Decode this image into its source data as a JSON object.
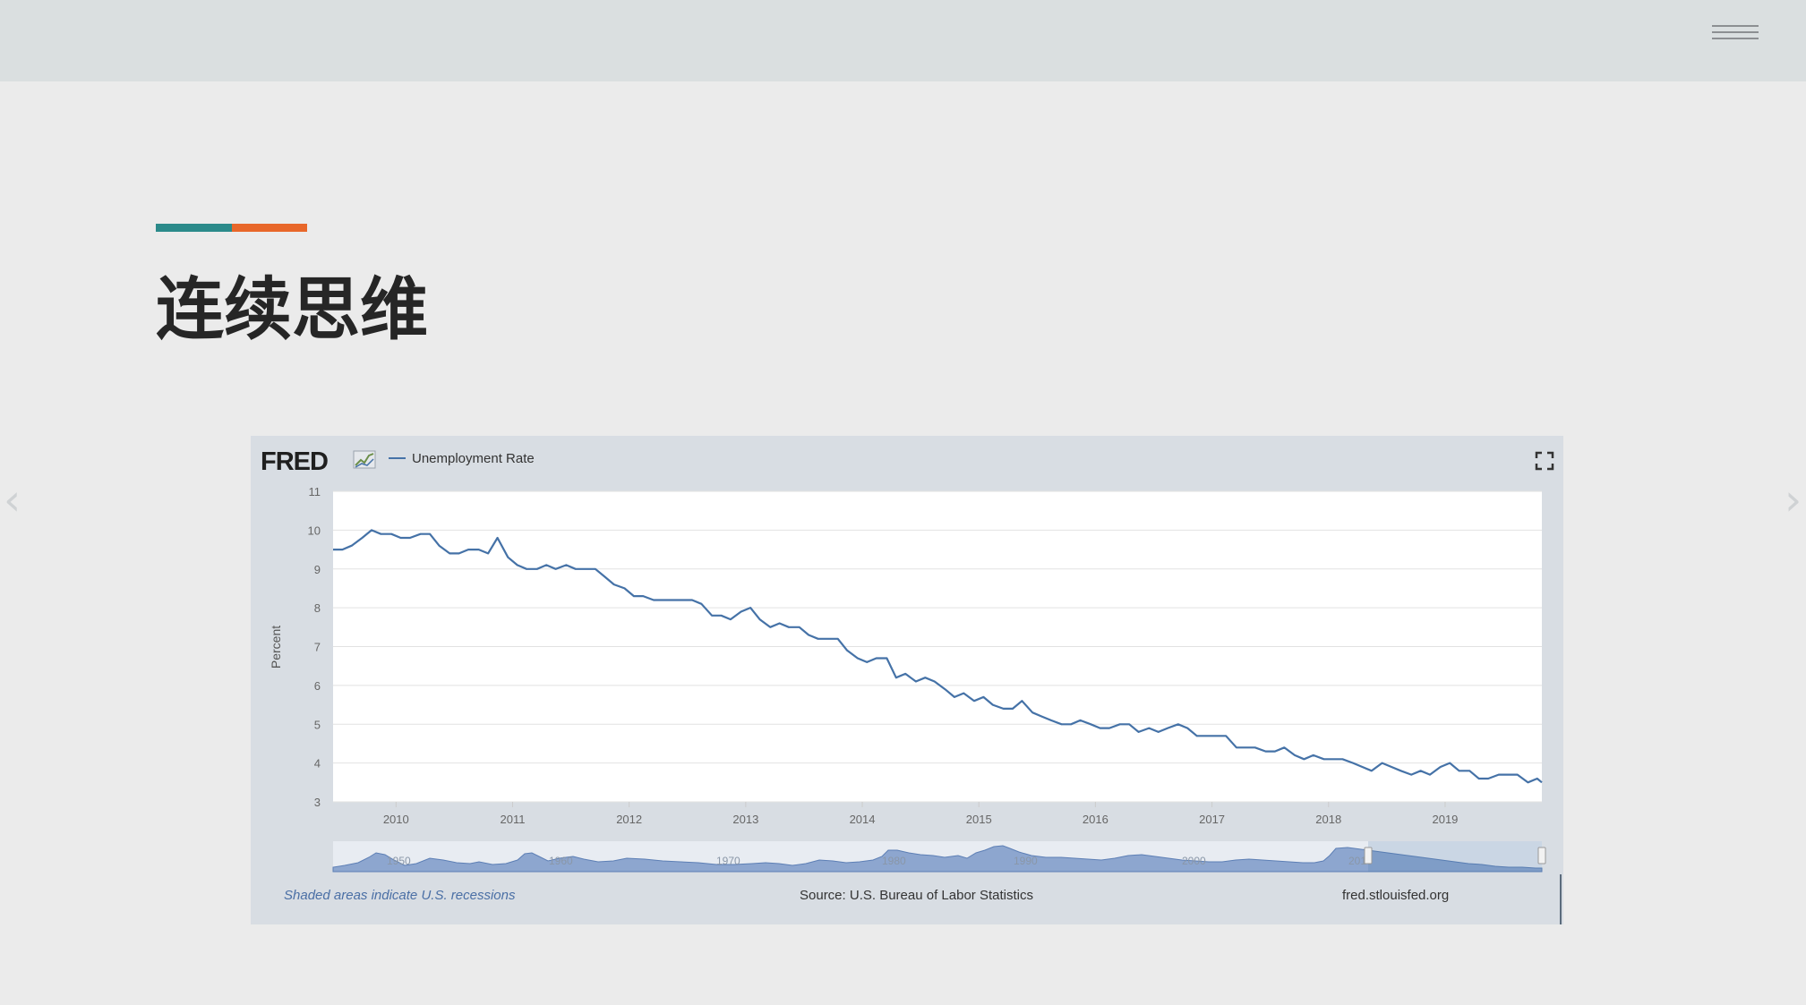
{
  "slide": {
    "title": "连续思维",
    "accent_colors": [
      "#2b8a8a",
      "#e8672a"
    ]
  },
  "navigation": {
    "menu_icon": "hamburger-menu-icon",
    "prev_icon": "chevron-left-icon",
    "next_icon": "chevron-right-icon"
  },
  "chart": {
    "logo": "FRED",
    "fullscreen_icon": "fullscreen-icon",
    "footer": {
      "recession_note": "Shaded areas indicate U.S. recessions",
      "source": "Source: U.S. Bureau of Labor Statistics",
      "site": "fred.stlouisfed.org"
    }
  },
  "chart_data": {
    "type": "line",
    "title": "",
    "xlabel": "",
    "ylabel": "Percent",
    "legend": {
      "position": "top-left",
      "entries": [
        "Unemployment Rate"
      ]
    },
    "grid": true,
    "line_color": "#4572a7",
    "ylim": [
      3,
      11
    ],
    "yticks": [
      3,
      4,
      5,
      6,
      7,
      8,
      9,
      10,
      11
    ],
    "xlim": [
      2009.46,
      2019.83
    ],
    "xticks": [
      2010,
      2011,
      2012,
      2013,
      2014,
      2015,
      2016,
      2017,
      2018,
      2019
    ],
    "series": [
      {
        "name": "Unemployment Rate",
        "x": [
          2009.46,
          2009.54,
          2009.62,
          2009.71,
          2009.79,
          2009.87,
          2009.96,
          2010.04,
          2010.12,
          2010.21,
          2010.29,
          2010.37,
          2010.46,
          2010.54,
          2010.62,
          2010.71,
          2010.79,
          2010.87,
          2010.96,
          2011.04,
          2011.12,
          2011.21,
          2011.29,
          2011.37,
          2011.46,
          2011.54,
          2011.62,
          2011.71,
          2011.79,
          2011.87,
          2011.96,
          2012.04,
          2012.12,
          2012.21,
          2012.29,
          2012.37,
          2012.46,
          2012.54,
          2012.62,
          2012.71,
          2012.79,
          2012.87,
          2012.96,
          2013.04,
          2013.12,
          2013.21,
          2013.29,
          2013.37,
          2013.46,
          2013.54,
          2013.62,
          2013.71,
          2013.79,
          2013.87,
          2013.96,
          2014.04,
          2014.12,
          2014.21,
          2014.29,
          2014.37,
          2014.46,
          2014.54,
          2014.62,
          2014.71,
          2014.79,
          2014.87,
          2014.96,
          2015.04,
          2015.12,
          2015.21,
          2015.29,
          2015.37,
          2015.46,
          2015.54,
          2015.62,
          2015.71,
          2015.79,
          2015.87,
          2015.96,
          2016.04,
          2016.12,
          2016.21,
          2016.29,
          2016.37,
          2016.46,
          2016.54,
          2016.62,
          2016.71,
          2016.79,
          2016.87,
          2016.96,
          2017.04,
          2017.12,
          2017.21,
          2017.29,
          2017.37,
          2017.46,
          2017.54,
          2017.62,
          2017.71,
          2017.79,
          2017.87,
          2017.96,
          2018.04,
          2018.12,
          2018.21,
          2018.29,
          2018.37,
          2018.46,
          2018.54,
          2018.62,
          2018.71,
          2018.79,
          2018.87,
          2018.96,
          2019.04,
          2019.12,
          2019.21,
          2019.29,
          2019.37,
          2019.46,
          2019.54,
          2019.62,
          2019.71,
          2019.79,
          2019.83
        ],
        "values": [
          9.5,
          9.5,
          9.6,
          9.8,
          10.0,
          9.9,
          9.9,
          9.8,
          9.8,
          9.9,
          9.9,
          9.6,
          9.4,
          9.4,
          9.5,
          9.5,
          9.4,
          9.8,
          9.3,
          9.1,
          9.0,
          9.0,
          9.1,
          9.0,
          9.1,
          9.0,
          9.0,
          9.0,
          8.8,
          8.6,
          8.5,
          8.3,
          8.3,
          8.2,
          8.2,
          8.2,
          8.2,
          8.2,
          8.1,
          7.8,
          7.8,
          7.7,
          7.9,
          8.0,
          7.7,
          7.5,
          7.6,
          7.5,
          7.5,
          7.3,
          7.2,
          7.2,
          7.2,
          6.9,
          6.7,
          6.6,
          6.7,
          6.7,
          6.2,
          6.3,
          6.1,
          6.2,
          6.1,
          5.9,
          5.7,
          5.8,
          5.6,
          5.7,
          5.5,
          5.4,
          5.4,
          5.6,
          5.3,
          5.2,
          5.1,
          5.0,
          5.0,
          5.1,
          5.0,
          4.9,
          4.9,
          5.0,
          5.0,
          4.8,
          4.9,
          4.8,
          4.9,
          5.0,
          4.9,
          4.7,
          4.7,
          4.7,
          4.7,
          4.4,
          4.4,
          4.4,
          4.3,
          4.3,
          4.4,
          4.2,
          4.1,
          4.2,
          4.1,
          4.1,
          4.1,
          4.0,
          3.9,
          3.8,
          4.0,
          3.9,
          3.8,
          3.7,
          3.8,
          3.7,
          3.9,
          4.0,
          3.8,
          3.8,
          3.6,
          3.6,
          3.7,
          3.7,
          3.7,
          3.5,
          3.6,
          3.5
        ]
      }
    ],
    "overview": {
      "tick_labels": [
        "1950",
        "1960",
        "1970",
        "1980",
        "1990",
        "2000",
        "2010"
      ],
      "selected_range": [
        2009.46,
        2019.83
      ]
    }
  }
}
